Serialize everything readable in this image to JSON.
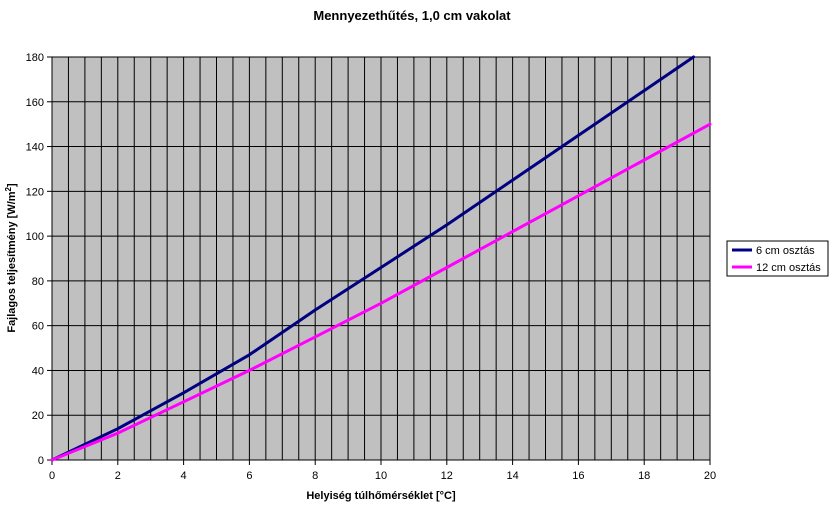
{
  "chart_data": {
    "type": "line",
    "title": "Mennyezethűtés, 1,0 cm vakolat",
    "xlabel": "Helyiség túlhőmérséklet [°C]",
    "ylabel_main": "Fajlagos teljesítmény [W/m",
    "ylabel_sup": "2",
    "ylabel_end": "]",
    "xlim": [
      0,
      20
    ],
    "ylim": [
      0,
      180
    ],
    "x_ticks": [
      0,
      2,
      4,
      6,
      8,
      10,
      12,
      14,
      16,
      18,
      20
    ],
    "y_ticks": [
      0,
      20,
      40,
      60,
      80,
      100,
      120,
      140,
      160,
      180
    ],
    "grid": true,
    "plot_background": "#c0c0c0",
    "legend_position": "right",
    "series": [
      {
        "name": "6 cm osztás",
        "color": "#000080",
        "x": [
          0,
          2,
          4,
          6,
          8,
          10,
          12,
          14,
          16,
          18,
          19.5
        ],
        "y": [
          0,
          14,
          30,
          47,
          67,
          86,
          105,
          125,
          145,
          165,
          180
        ]
      },
      {
        "name": "12 cm osztás",
        "color": "#ff00ff",
        "x": [
          0,
          2,
          4,
          6,
          8,
          10,
          12,
          14,
          16,
          18,
          20
        ],
        "y": [
          0,
          12,
          26,
          40,
          55,
          70,
          86,
          102,
          118,
          134,
          150
        ]
      }
    ]
  }
}
